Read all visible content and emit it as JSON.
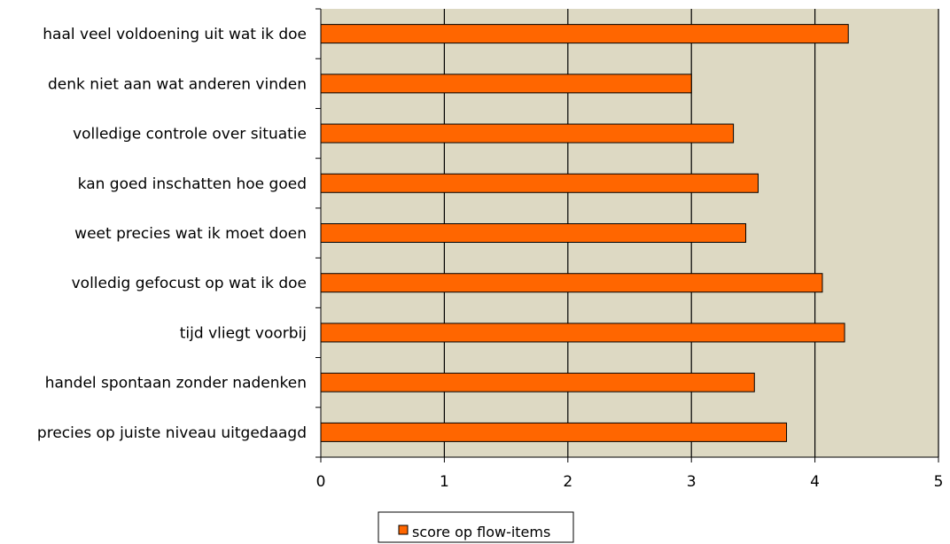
{
  "chart_data": {
    "type": "bar",
    "orientation": "horizontal",
    "categories": [
      "haal veel voldoening uit wat ik doe",
      "denk niet aan wat anderen vinden",
      "volledige controle over situatie",
      "kan goed inschatten hoe goed",
      "weet precies wat ik moet doen",
      "volledig gefocust op wat ik doe",
      "tijd vliegt voorbij",
      "handel spontaan zonder nadenken",
      "precies op juiste niveau uitgedaagd"
    ],
    "series": [
      {
        "name": "score op flow-items",
        "values": [
          4.27,
          3.0,
          3.34,
          3.54,
          3.44,
          4.06,
          4.24,
          3.51,
          3.77
        ],
        "color": "#ff6600"
      }
    ],
    "xlim": [
      0,
      5
    ],
    "xticks": [
      "0",
      "1",
      "2",
      "3",
      "4",
      "5"
    ],
    "grid": true,
    "legend_position": "bottom-left",
    "plot_background": "#ddd9c3",
    "bar_color": "#ff6600"
  }
}
